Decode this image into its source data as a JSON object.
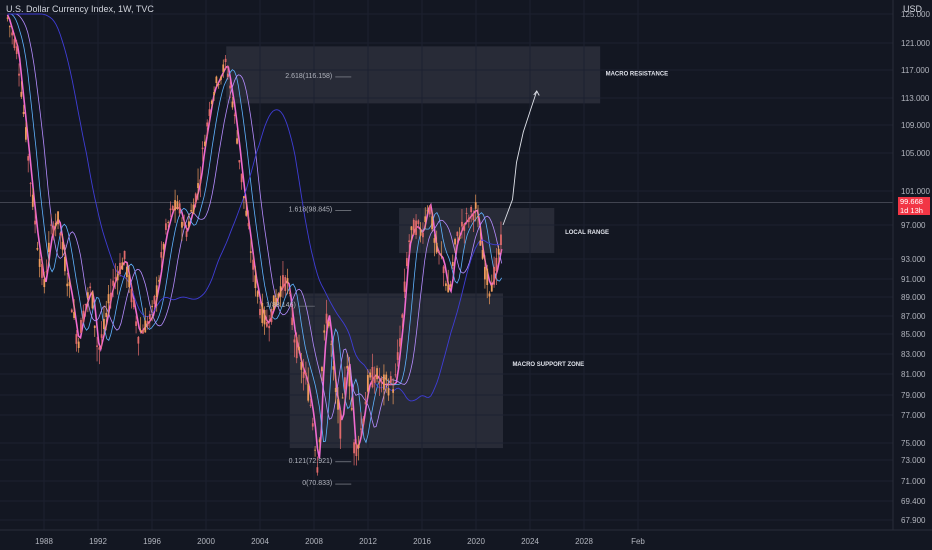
{
  "header": {
    "title": "U.S. Dollar Currency Index, 1W, TVC",
    "currency": "USD"
  },
  "price_tag": {
    "price": "99.668",
    "countdown": "1d 13h"
  },
  "colors": {
    "background": "#131722",
    "candles_up": "#ee9b5b",
    "candles_down": "#e06a6a",
    "ma_fast": "#f06bd0",
    "ma_mid": "#5fb3ff",
    "ma_slow": "#b58cff",
    "ma_long": "#3f3dd6",
    "zone_fill": "#3a3d48",
    "price_tag": "#f23645"
  },
  "chart_data": {
    "type": "line",
    "y_ticks": [
      "125.000",
      "121.000",
      "117.000",
      "113.000",
      "109.000",
      "105.000",
      "101.000",
      "97.000",
      "93.000",
      "91.000",
      "89.000",
      "87.000",
      "85.000",
      "83.000",
      "81.000",
      "79.000",
      "77.000",
      "75.000",
      "73.000",
      "71.000",
      "69.400",
      "67.900"
    ],
    "x_ticks": [
      "1988",
      "1992",
      "1996",
      "2000",
      "2004",
      "2008",
      "2012",
      "2016",
      "2020",
      "2024",
      "2028",
      "Feb"
    ],
    "series": [
      {
        "x": [
          1985.2,
          1986,
          1986.8,
          1987.5,
          1988,
          1988.5,
          1989,
          1989.5,
          1990,
          1990.5,
          1991,
          1991.5,
          1992,
          1992.5,
          1993,
          1993.5,
          1994,
          1994.5,
          1995,
          1995.5,
          1996,
          1996.5,
          1997,
          1997.5,
          1998,
          1998.5,
          1999,
          1999.5,
          2000,
          2000.5,
          2001,
          2001.5,
          2002,
          2002.5,
          2003,
          2003.5,
          2004,
          2004.5,
          2005,
          2005.5,
          2006,
          2006.5,
          2007,
          2007.5,
          2008,
          2008.3,
          2008.6,
          2009,
          2009.5,
          2010,
          2010.5,
          2011,
          2011.5,
          2012,
          2012.5,
          2013,
          2013.5,
          2014,
          2014.5,
          2015,
          2015.5,
          2016,
          2016.5,
          2017,
          2017.5,
          2018,
          2018.5,
          2019,
          2019.5,
          2020,
          2020.5,
          2021,
          2021.5,
          2022
        ],
        "y": [
          125,
          120,
          105,
          95,
          90,
          96,
          98,
          93,
          89,
          84,
          88,
          90,
          83,
          86,
          90,
          92,
          93,
          89,
          85,
          86,
          87,
          91,
          96,
          99,
          99,
          96,
          99,
          102,
          108,
          114,
          116,
          118,
          112,
          104,
          98,
          92,
          88,
          86,
          88,
          90,
          91,
          85,
          82,
          80,
          76,
          72,
          82,
          88,
          80,
          76,
          83,
          74,
          76,
          80,
          81,
          80,
          80,
          80,
          86,
          95,
          97,
          96,
          100,
          94,
          93,
          89,
          95,
          97,
          98,
          99,
          93,
          90,
          92,
          96
        ]
      }
    ],
    "fib_levels": [
      {
        "label": "2.618(116.158)"
      },
      {
        "label": "1.618(98.845)"
      },
      {
        "label": "1(88.146)"
      },
      {
        "label": "0.121(72.921)"
      },
      {
        "label": "0(70.833)"
      }
    ],
    "zones": [
      {
        "label": "MACRO RESISTANCE"
      },
      {
        "label": "LOCAL RANGE"
      },
      {
        "label": "MACRO SUPPORT ZONE"
      }
    ],
    "projection": {
      "x": [
        2022,
        2022.7,
        2023,
        2023.5,
        2024,
        2024.5
      ],
      "y": [
        97,
        100,
        104,
        108,
        111,
        114
      ]
    }
  }
}
